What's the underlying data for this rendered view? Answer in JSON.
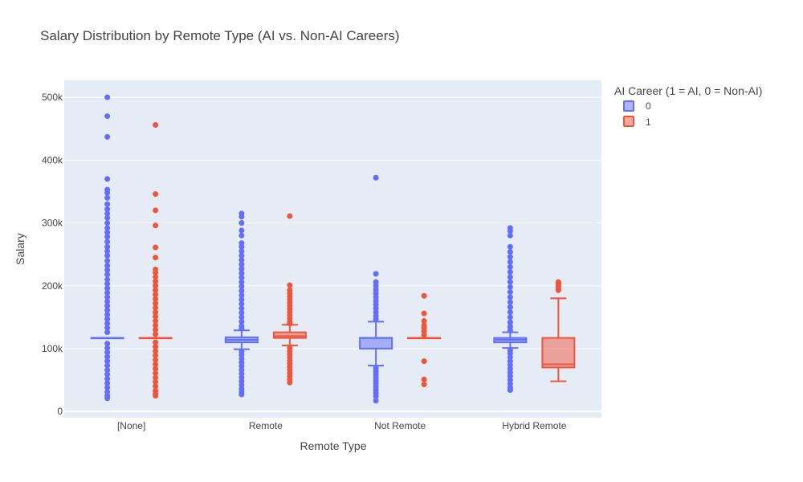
{
  "chart_data": {
    "type": "box",
    "title": "Salary Distribution by Remote Type (AI vs. Non-AI Careers)",
    "xlabel": "Remote Type",
    "ylabel": "Salary",
    "categories": [
      "[None]",
      "Remote",
      "Not Remote",
      "Hybrid Remote"
    ],
    "y_ticks": [
      0,
      100000,
      200000,
      300000,
      400000,
      500000
    ],
    "y_tick_labels": [
      "0",
      "100k",
      "200k",
      "300k",
      "400k",
      "500k"
    ],
    "ylim": [
      -10000,
      527000
    ],
    "grid": true,
    "legend": {
      "title": "AI Career (1 = AI, 0 = Non-AI)",
      "placement": "top-right"
    },
    "series": [
      {
        "name": "0",
        "color": "#636efa",
        "fill": "rgba(99,110,250,0.5)",
        "boxes": [
          {
            "q1": 117000,
            "median": 117000,
            "q3": 117000,
            "lower": 117000,
            "upper": 117000,
            "outliers": [
              500000,
              470000,
              437000,
              370000,
              353000,
              348000,
              340000,
              330000,
              322000,
              315000,
              308000,
              300000,
              292000,
              285000,
              278000,
              270000,
              262000,
              255000,
              248000,
              240000,
              232000,
              225000,
              218000,
              210000,
              203000,
              196000,
              189000,
              182000,
              175000,
              168000,
              161000,
              154000,
              147000,
              140000,
              133000,
              126000,
              108000,
              101000,
              94000,
              87000,
              80000,
              73000,
              66000,
              59000,
              52000,
              45000,
              38000,
              31000,
              25000,
              21000
            ]
          },
          {
            "q1": 110000,
            "median": 114000,
            "q3": 118000,
            "lower": 99000,
            "upper": 129000,
            "outliers": [
              315000,
              310000,
              300000,
              288000,
              280000,
              268000,
              262000,
              255000,
              248000,
              241000,
              234000,
              227000,
              220000,
              213000,
              206000,
              199000,
              192000,
              185000,
              178000,
              171000,
              164000,
              157000,
              150000,
              143000,
              136000,
              132000,
              95000,
              90000,
              84000,
              78000,
              72000,
              66000,
              60000,
              54000,
              48000,
              42000,
              36000,
              31000,
              27000
            ]
          },
          {
            "q1": 100000,
            "median": 117000,
            "q3": 117000,
            "lower": 73000,
            "upper": 143000,
            "outliers": [
              372000,
              219000,
              206000,
              200000,
              194000,
              188000,
              182000,
              176000,
              170000,
              164000,
              158000,
              152000,
              147000,
              69000,
              64000,
              59000,
              54000,
              49000,
              44000,
              39000,
              34000,
              29000,
              24000,
              17000
            ]
          },
          {
            "q1": 110000,
            "median": 114000,
            "q3": 117000,
            "lower": 101000,
            "upper": 126000,
            "outliers": [
              292000,
              287000,
              280000,
              262000,
              254000,
              246000,
              238000,
              230000,
              222000,
              214000,
              206000,
              198000,
              190000,
              182000,
              174000,
              166000,
              158000,
              150000,
              142000,
              135000,
              129000,
              97000,
              92000,
              86000,
              80000,
              74000,
              68000,
              62000,
              56000,
              50000,
              44000,
              38000,
              34000
            ]
          }
        ]
      },
      {
        "name": "1",
        "color": "#ef553b",
        "fill": "rgba(239,85,59,0.5)",
        "boxes": [
          {
            "q1": 117000,
            "median": 117000,
            "q3": 117000,
            "lower": 117000,
            "upper": 117000,
            "outliers": [
              456000,
              346000,
              320000,
              296000,
              261000,
              245000,
              226000,
              221000,
              214000,
              207000,
              200000,
              193000,
              186000,
              179000,
              172000,
              165000,
              158000,
              151000,
              144000,
              137000,
              130000,
              123000,
              110000,
              103000,
              96000,
              89000,
              82000,
              75000,
              68000,
              61000,
              54000,
              47000,
              40000,
              33000,
              28000,
              25000
            ]
          },
          {
            "q1": 117000,
            "median": 120000,
            "q3": 126000,
            "lower": 105000,
            "upper": 138000,
            "outliers": [
              311000,
              201000,
              193000,
              188000,
              183000,
              178000,
              173000,
              168000,
              163000,
              158000,
              153000,
              148000,
              143000,
              140000,
              101000,
              96000,
              91000,
              86000,
              81000,
              76000,
              71000,
              66000,
              61000,
              56000,
              51000,
              46000
            ]
          },
          {
            "q1": 117000,
            "median": 117000,
            "q3": 117000,
            "lower": 117000,
            "upper": 117000,
            "outliers": [
              184000,
              156000,
              144000,
              137000,
              133000,
              128000,
              122000,
              80000,
              51000,
              43000
            ]
          },
          {
            "q1": 70000,
            "median": 75000,
            "q3": 117000,
            "lower": 48000,
            "upper": 180000,
            "outliers": [
              206000,
              204000,
              202000,
              199000,
              196000,
              193000
            ]
          }
        ]
      }
    ]
  }
}
